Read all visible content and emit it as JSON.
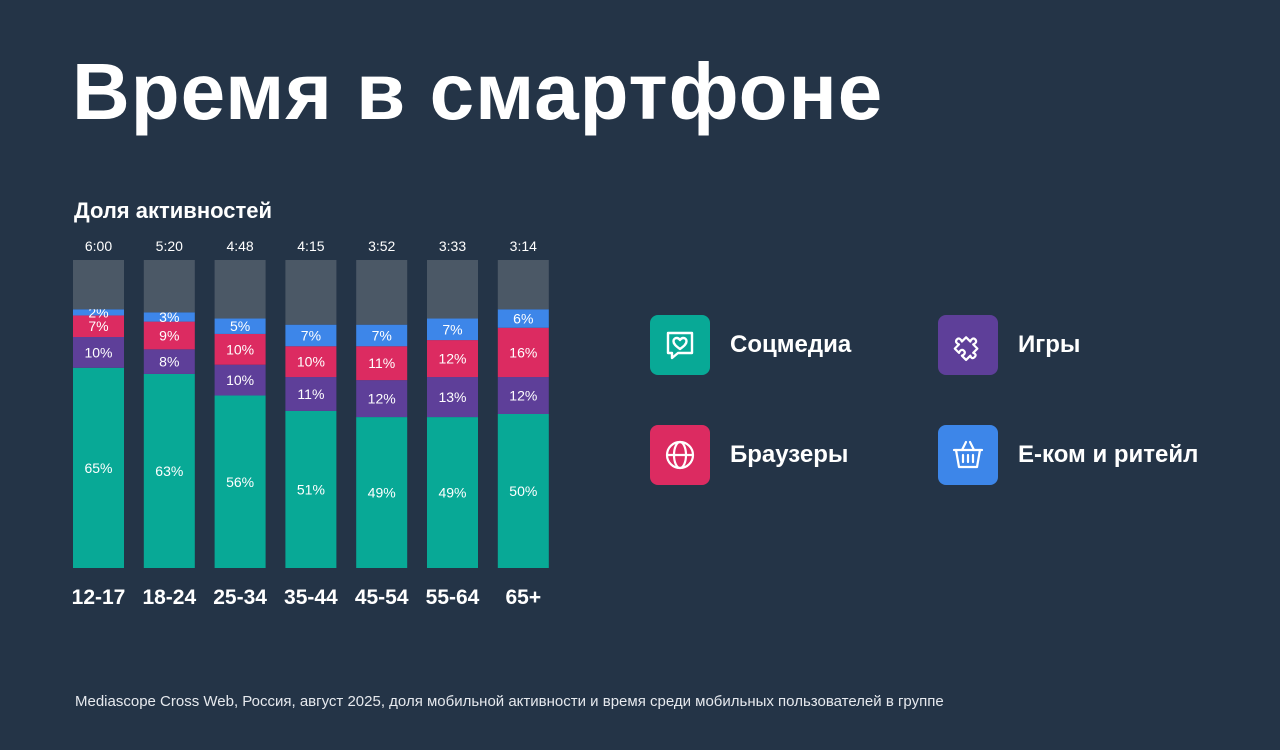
{
  "title": "Время в смартфоне",
  "footnote": "Mediascope Cross Web, Россия, август 2025, доля мобильной активности и время среди мобильных пользователей в группе",
  "colors": {
    "background": "#243447",
    "social": "#08A996",
    "games": "#5E3F99",
    "browsers": "#DC2B61",
    "ecom": "#3D86E9",
    "other": "#4B5866"
  },
  "legend": [
    {
      "key": "social",
      "label": "Соцмедиа",
      "icon": "chat-heart-icon",
      "color": "#08A996"
    },
    {
      "key": "games",
      "label": "Игры",
      "icon": "puzzle-icon",
      "color": "#5E3F99"
    },
    {
      "key": "browsers",
      "label": "Браузеры",
      "icon": "globe-icon",
      "color": "#DC2B61"
    },
    {
      "key": "ecom",
      "label": "Е-ком и ритейл",
      "icon": "basket-icon",
      "color": "#3D86E9"
    }
  ],
  "chart_data": {
    "type": "bar",
    "stacked": true,
    "title": "Доля активностей",
    "categories": [
      "12-17",
      "18-24",
      "25-34",
      "35-44",
      "45-54",
      "55-64",
      "65+"
    ],
    "totals": [
      "6:00",
      "5:20",
      "4:48",
      "4:15",
      "3:52",
      "3:33",
      "3:14"
    ],
    "series": [
      {
        "name": "Соцмедиа",
        "color": "#08A996",
        "values": [
          65,
          63,
          56,
          51,
          49,
          49,
          50
        ]
      },
      {
        "name": "Игры",
        "color": "#5E3F99",
        "values": [
          10,
          8,
          10,
          11,
          12,
          13,
          12
        ]
      },
      {
        "name": "Браузеры",
        "color": "#DC2B61",
        "values": [
          7,
          9,
          10,
          10,
          11,
          12,
          16
        ]
      },
      {
        "name": "Е-ком и ритейл",
        "color": "#3D86E9",
        "values": [
          2,
          3,
          5,
          7,
          7,
          7,
          6
        ]
      },
      {
        "color": "#4B5866",
        "values": [
          16,
          17,
          19,
          21,
          21,
          19,
          16
        ]
      }
    ],
    "label_suffix": "%",
    "ylim": [
      0,
      100
    ]
  }
}
